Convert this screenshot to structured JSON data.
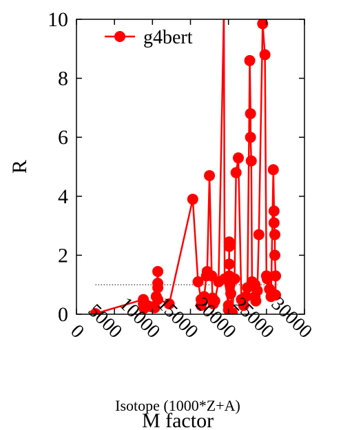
{
  "chart_data": {
    "type": "line",
    "title": "",
    "xlabel": "Isotope (1000*Z+A)",
    "xlabel2": "M factor",
    "ylabel": "R",
    "xlim": [
      0,
      30000
    ],
    "ylim": [
      0,
      10
    ],
    "xticks": [
      "0",
      "5000",
      "10000",
      "15000",
      "20000",
      "25000",
      "30000"
    ],
    "yticks": [
      "0",
      "2",
      "4",
      "6",
      "8",
      "10"
    ],
    "reference_line": {
      "y": 1,
      "x_range": [
        2500,
        26500
      ],
      "style": "dotted"
    },
    "legend": {
      "position": "top-left"
    },
    "grid": false,
    "series": [
      {
        "name": "g4bert",
        "color": "#ff0000",
        "x": [
          2500,
          8800,
          8800,
          8900,
          9300,
          9900,
          10300,
          10500,
          10700,
          10700,
          10700,
          10700,
          12200,
          15300,
          16000,
          16400,
          16400,
          16500,
          16800,
          17100,
          17200,
          17500,
          17800,
          17900,
          18000,
          18200,
          18700,
          19400,
          19500,
          20000,
          20000,
          20100,
          20100,
          20100,
          20100,
          20200,
          20300,
          20500,
          20800,
          21000,
          21300,
          21700,
          22000,
          22300,
          22500,
          22800,
          22900,
          22900,
          23000,
          23100,
          23500,
          23500,
          23600,
          23800,
          24000,
          24500,
          24800,
          25000,
          25100,
          25400,
          25600,
          25900,
          26000,
          26000,
          26100,
          26100,
          26200,
          26200
        ],
        "y": [
          0.02,
          0.5,
          0.35,
          0.2,
          0.3,
          0.25,
          0.22,
          0.6,
          1.45,
          1.05,
          0.9,
          0.5,
          0.35,
          3.9,
          1.1,
          0.5,
          0.3,
          0.4,
          0.6,
          1.3,
          1.45,
          4.7,
          1.3,
          0.55,
          0.35,
          0.45,
          1.1,
          10.2,
          1.2,
          0.3,
          0.15,
          2.45,
          2.3,
          1.7,
          1.3,
          1.0,
          0.7,
          0.05,
          1.2,
          4.8,
          5.3,
          0.5,
          0.3,
          0.6,
          0.9,
          8.6,
          6.8,
          6.0,
          5.2,
          1.1,
          1.0,
          0.6,
          0.45,
          0.8,
          2.7,
          9.85,
          8.8,
          1.3,
          1.2,
          0.85,
          0.6,
          4.9,
          3.5,
          3.1,
          2.7,
          2.0,
          1.3,
          0.65
        ]
      }
    ]
  }
}
